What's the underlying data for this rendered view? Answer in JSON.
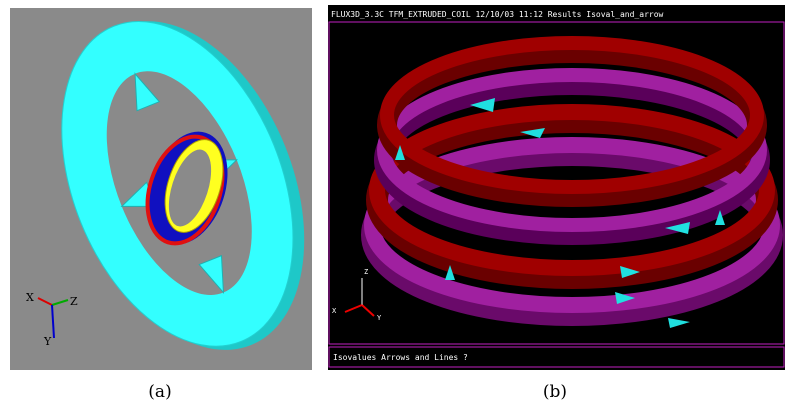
{
  "panels": [
    {
      "caption": "(a)",
      "axes": {
        "x": "X",
        "z": "Z",
        "y": "Y"
      }
    },
    {
      "caption": "(b)",
      "header": "FLUX3D_3.3C TFM_EXTRUDED_COIL 12/10/03 11:12 Results Isoval_and_arrow",
      "axes": {
        "z": "Z",
        "x": "X",
        "y": "Y"
      },
      "prompt": "Isovalues Arrows and Lines ?"
    }
  ]
}
